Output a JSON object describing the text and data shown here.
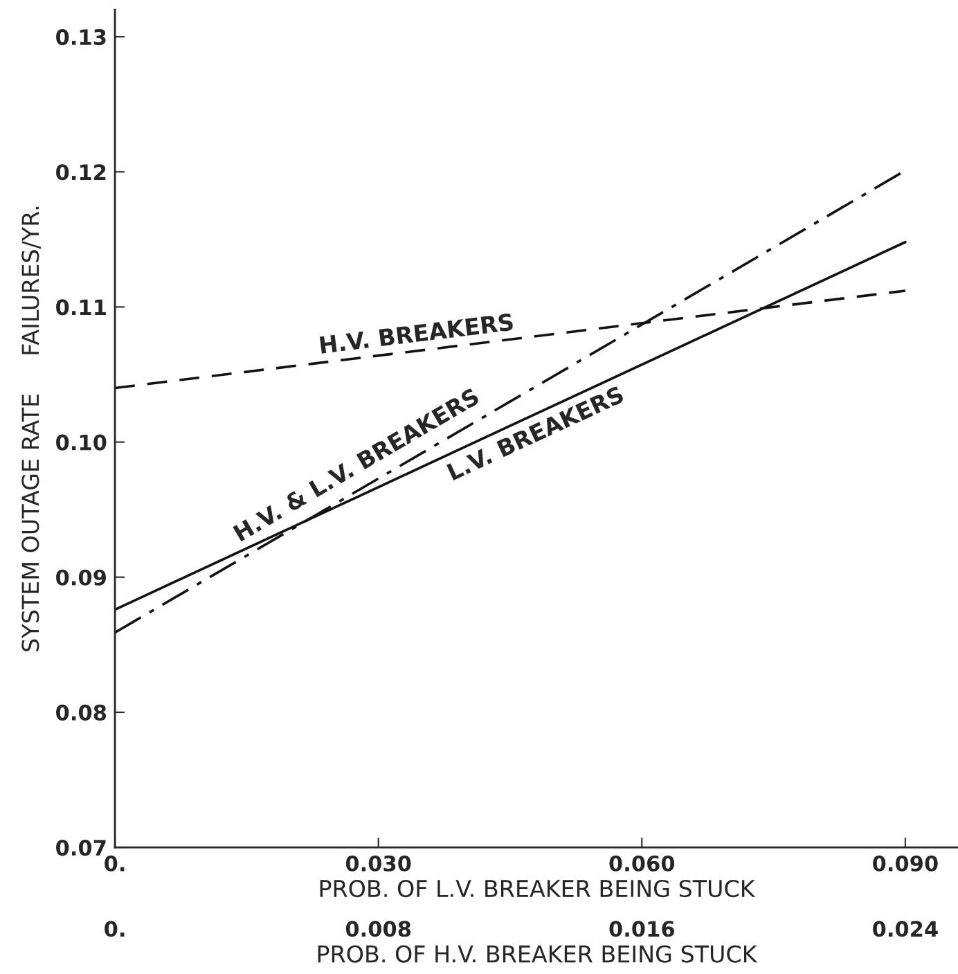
{
  "chart_data": {
    "type": "line",
    "xlabel": "PROB. OF L.V. BREAKER BEING STUCK",
    "ylabel": "SYSTEM OUTAGE RATE     FAILURES/YR.",
    "x2label": "PROB. OF H.V. BREAKER BEING STUCK",
    "x": [
      0,
      0.09
    ],
    "series": [
      {
        "color": "#111111",
        "line_style": "dashed",
        "values": [
          0.104,
          0.1112
        ]
      },
      {
        "color": "#111111",
        "line_style": "solid",
        "values": [
          0.0876,
          0.1148
        ]
      },
      {
        "color": "#111111",
        "line_style": "dashdot",
        "values": [
          0.0859,
          0.1201
        ]
      }
    ],
    "xlim": [
      0,
      0.096
    ],
    "ylim": [
      0.07,
      0.132
    ],
    "xticks": [
      {
        "value": 0,
        "label": "0."
      },
      {
        "value": 0.03,
        "label": "0.030"
      },
      {
        "value": 0.06,
        "label": "0.060"
      },
      {
        "value": 0.09,
        "label": "0.090"
      }
    ],
    "yticks": [
      {
        "value": 0.07,
        "label": "0.07"
      },
      {
        "value": 0.08,
        "label": "0.08"
      },
      {
        "value": 0.09,
        "label": "0.09"
      },
      {
        "value": 0.1,
        "label": "0.10"
      },
      {
        "value": 0.11,
        "label": "0.11"
      },
      {
        "value": 0.12,
        "label": "0.12"
      },
      {
        "value": 0.13,
        "label": "0.13"
      }
    ],
    "x2lim": [
      0,
      0.0256
    ],
    "x2ticks": [
      {
        "value": 0,
        "label": "0."
      },
      {
        "value": 0.008,
        "label": "0.008"
      },
      {
        "value": 0.016,
        "label": "0.016"
      },
      {
        "value": 0.024,
        "label": "0.024"
      }
    ],
    "annotations": [
      "H.V. BREAKERS",
      "L.V. BREAKERS",
      "H.V. & L.V. BREAKERS"
    ],
    "grid": false,
    "legend": false,
    "marker": "none"
  }
}
